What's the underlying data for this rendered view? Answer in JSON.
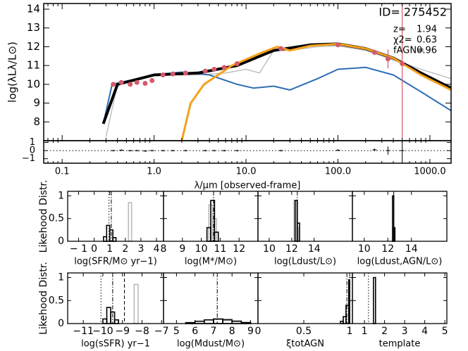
{
  "chart_data": [
    {
      "type": "line",
      "ylabel": "log(λLλ/L⊙)",
      "xlog": true,
      "xlim": [
        0.063,
        1700
      ],
      "ylim": [
        7.0,
        14.3
      ],
      "yticks": [
        8,
        9,
        10,
        11,
        12,
        13,
        14
      ],
      "id_label": "ID= 275452",
      "params": [
        {
          "name": "z=",
          "value": 1.94
        },
        {
          "name": "χ2=",
          "value": 0.63
        },
        {
          "name": "fAGN=",
          "value": 0.96
        }
      ],
      "series": [
        {
          "color": "#b8b8b8",
          "width": 1.3,
          "x": [
            0.3,
            0.4,
            1,
            3,
            6,
            10,
            14,
            20,
            30,
            60,
            100,
            200,
            400,
            800,
            1700
          ],
          "values": [
            7.2,
            10.0,
            10.5,
            10.5,
            10.6,
            10.8,
            10.6,
            11.8,
            11.8,
            12.0,
            12.05,
            11.8,
            11.3,
            10.8,
            10.3
          ]
        },
        {
          "color": "#2f6db5",
          "width": 2,
          "x": [
            0.28,
            0.35,
            1,
            2,
            4,
            8,
            12,
            20,
            30,
            60,
            100,
            200,
            400,
            800,
            1700
          ],
          "values": [
            7.9,
            10.0,
            10.5,
            10.65,
            10.5,
            10.0,
            9.8,
            9.9,
            9.7,
            10.3,
            10.8,
            10.9,
            10.5,
            9.6,
            8.6
          ]
        },
        {
          "color": "#000000",
          "width": 4,
          "x": [
            0.28,
            0.4,
            1,
            3,
            8,
            20,
            50,
            100,
            200,
            400,
            800,
            1700
          ],
          "values": [
            7.9,
            10.0,
            10.5,
            10.6,
            11.0,
            11.8,
            12.1,
            12.15,
            11.9,
            11.4,
            10.6,
            9.8
          ]
        },
        {
          "color": "#f5a11c",
          "width": 3,
          "x": [
            2,
            2.5,
            3.5,
            7,
            15,
            22,
            30,
            50,
            100,
            200,
            400,
            800,
            1700
          ],
          "values": [
            7.0,
            9.0,
            10.0,
            11.0,
            11.7,
            12.0,
            11.8,
            12.05,
            12.15,
            11.9,
            11.4,
            10.5,
            9.7
          ]
        }
      ],
      "points": {
        "color": "#d65a6a",
        "x": [
          0.36,
          0.44,
          0.55,
          0.65,
          0.8,
          0.95,
          1.25,
          1.6,
          2.2,
          3.6,
          4.5,
          5.8,
          8,
          24,
          100,
          250,
          350,
          500
        ],
        "values": [
          10.0,
          10.1,
          10.0,
          10.1,
          10.05,
          10.2,
          10.5,
          10.55,
          10.6,
          10.7,
          10.8,
          10.9,
          11.1,
          11.9,
          12.1,
          11.7,
          11.35,
          11.1
        ],
        "errors": [
          0.1,
          0.1,
          0.1,
          0.1,
          0.1,
          0.1,
          0.1,
          0.1,
          0.1,
          0.1,
          0.1,
          0.1,
          0.1,
          0.1,
          0.1,
          0.15,
          0.5,
          4
        ]
      }
    },
    {
      "type": "scatter",
      "xlabel": "λ/μm [observed-frame]",
      "xlog": true,
      "xlim": [
        0.063,
        1700
      ],
      "ylim": [
        -1.55,
        1.22
      ],
      "yticks": [
        {
          "value": -1,
          "label": "−1"
        },
        0,
        1
      ],
      "xticks": [
        0.1,
        {
          "value": 1,
          "label": "1.0"
        },
        {
          "value": 10,
          "label": "10.0"
        },
        {
          "value": 100,
          "label": "100.0"
        },
        {
          "value": 1000,
          "label": "1000.0"
        }
      ],
      "x": [
        0.36,
        0.44,
        0.55,
        0.65,
        0.8,
        0.95,
        1.25,
        1.6,
        2.2,
        3.6,
        4.5,
        5.8,
        8,
        24,
        100,
        250,
        350,
        500
      ],
      "values": [
        0,
        0.05,
        0,
        0,
        -0.05,
        0,
        0,
        0,
        0,
        0,
        0,
        0,
        0,
        0,
        0.05,
        0.1,
        0,
        0
      ],
      "errors": [
        0.1,
        0.1,
        0.1,
        0.1,
        0.1,
        0.1,
        0.1,
        0.1,
        0.1,
        0.1,
        0.1,
        0.1,
        0.1,
        0.1,
        0.1,
        0.15,
        0.5,
        1.3
      ]
    },
    {
      "type": "histogram",
      "ylabel": "Likehood Distr.",
      "xlabel": "log(SFR/M⊙ yr−1)",
      "xlim": [
        -1.7,
        4.45
      ],
      "xticks": [
        {
          "value": -1,
          "label": "− 1"
        },
        0,
        1,
        2,
        3,
        4
      ],
      "ylim": [
        0,
        1.1
      ],
      "yticks": [
        0,
        0.5,
        1
      ],
      "series": [
        {
          "color": "#bbbbbb",
          "bins": [
            2.2,
            2.4
          ],
          "counts": [
            0.85
          ]
        },
        {
          "color": "#000000",
          "bins": [
            0.6,
            0.8,
            1.0,
            1.2,
            1.4
          ],
          "counts": [
            0.1,
            0.35,
            0.25,
            0.08
          ]
        }
      ],
      "lines": [
        {
          "value": 0.95,
          "style": "dotted"
        },
        {
          "value": 1.1,
          "style": "dashdot"
        }
      ]
    },
    {
      "type": "histogram",
      "xlabel": "log(M*/M⊙)",
      "xlim": [
        8,
        13
      ],
      "xticks": [
        8,
        9,
        10,
        11,
        12
      ],
      "series": [
        {
          "color": "#bbbbbb",
          "bins": [
            10.4,
            10.6,
            10.8
          ],
          "counts": [
            0.8,
            0.5
          ]
        },
        {
          "color": "#000000",
          "bins": [
            10.3,
            10.5,
            10.7,
            10.9
          ],
          "counts": [
            0.3,
            0.9,
            0.2
          ]
        }
      ],
      "lines": [
        {
          "value": 10.65,
          "style": "dashdot"
        }
      ]
    },
    {
      "type": "histogram",
      "xlabel": "log(Ldust/L⊙)",
      "xlim": [
        9,
        17.4
      ],
      "xticks": [
        10,
        12,
        14
      ],
      "series": [
        {
          "color": "#bbbbbb",
          "bins": [
            12.2,
            12.4,
            12.6
          ],
          "counts": [
            0.9,
            0.3
          ]
        },
        {
          "color": "#000000",
          "bins": [
            12.3,
            12.5,
            12.7
          ],
          "counts": [
            0.9,
            0.4
          ]
        }
      ],
      "lines": [
        {
          "value": 12.5,
          "style": "dashdot"
        }
      ]
    },
    {
      "type": "histogram",
      "xlabel": "log(Ldust,AGN/L⊙)",
      "xlim": [
        9,
        17
      ],
      "xticks": [
        10,
        12,
        14
      ],
      "series": [
        {
          "color": "#000000",
          "bins": [
            12.4,
            12.5,
            12.6
          ],
          "counts": [
            1,
            0.3
          ]
        }
      ],
      "lines": [
        {
          "value": 12.5,
          "style": "dashdot"
        }
      ]
    },
    {
      "type": "histogram",
      "ylabel": "Likehood Distr.",
      "xlabel": "log(sSFR) yr−1",
      "xlim": [
        -11.8,
        -6.9
      ],
      "xticks": [
        {
          "value": -11,
          "label": "−11"
        },
        {
          "value": -10,
          "label": "−10"
        },
        {
          "value": -9,
          "label": "−9"
        },
        {
          "value": -8,
          "label": "−8"
        },
        {
          "value": -7,
          "label": "−7"
        }
      ],
      "ylim": [
        0,
        1.1
      ],
      "yticks": [
        0,
        0.5,
        1
      ],
      "series": [
        {
          "color": "#bbbbbb",
          "bins": [
            -8.4,
            -8.2
          ],
          "counts": [
            0.85
          ]
        },
        {
          "color": "#000000",
          "bins": [
            -10.0,
            -9.8,
            -9.6,
            -9.4,
            -9.2
          ],
          "counts": [
            0.1,
            0.35,
            0.25,
            0.08
          ]
        }
      ],
      "lines": [
        {
          "value": -10.1,
          "style": "dotted"
        },
        {
          "value": -9.5,
          "style": "dashdot"
        },
        {
          "value": -8.9,
          "style": "dashed"
        }
      ]
    },
    {
      "type": "histogram",
      "xlabel": "log(Mdust/M⊙)",
      "xlim": [
        4.3,
        9.4
      ],
      "xticks": [
        5,
        6,
        7,
        8,
        9
      ],
      "series": [
        {
          "color": "#bbbbbb",
          "bins": [
            5.5,
            6,
            6.5,
            7,
            7.5,
            8,
            8.5,
            9
          ],
          "counts": [
            0.02,
            0.05,
            0.08,
            0.09,
            0.1,
            0.06,
            0.03
          ]
        },
        {
          "color": "#000000",
          "bins": [
            5.5,
            6,
            6.5,
            7,
            7.5,
            8,
            8.5,
            9
          ],
          "counts": [
            0.02,
            0.05,
            0.08,
            0.1,
            0.08,
            0.05,
            0.02
          ]
        }
      ],
      "lines": [
        {
          "value": 7.2,
          "style": "dashdot"
        }
      ]
    },
    {
      "type": "histogram",
      "xlabel": "ξtotAGN",
      "xlim": [
        0,
        1.03
      ],
      "xticks": [
        0,
        0.5,
        1
      ],
      "series": [
        {
          "color": "#000000",
          "bins": [
            0.9,
            0.93,
            0.96,
            0.99,
            1.0
          ],
          "counts": [
            0.05,
            0.15,
            0.4,
            0.95
          ]
        }
      ],
      "lines": [
        {
          "value": 0.97,
          "style": "dashdot"
        }
      ]
    },
    {
      "type": "histogram",
      "xlabel": "template",
      "xlim": [
        0.4,
        5.1
      ],
      "xticks": [
        1,
        2,
        3,
        4,
        5
      ],
      "series": [
        {
          "color": "#000000",
          "bins": [
            1.45,
            1.55
          ],
          "counts": [
            1
          ]
        }
      ],
      "lines": [
        {
          "value": 1.2,
          "style": "dotted"
        }
      ]
    }
  ]
}
